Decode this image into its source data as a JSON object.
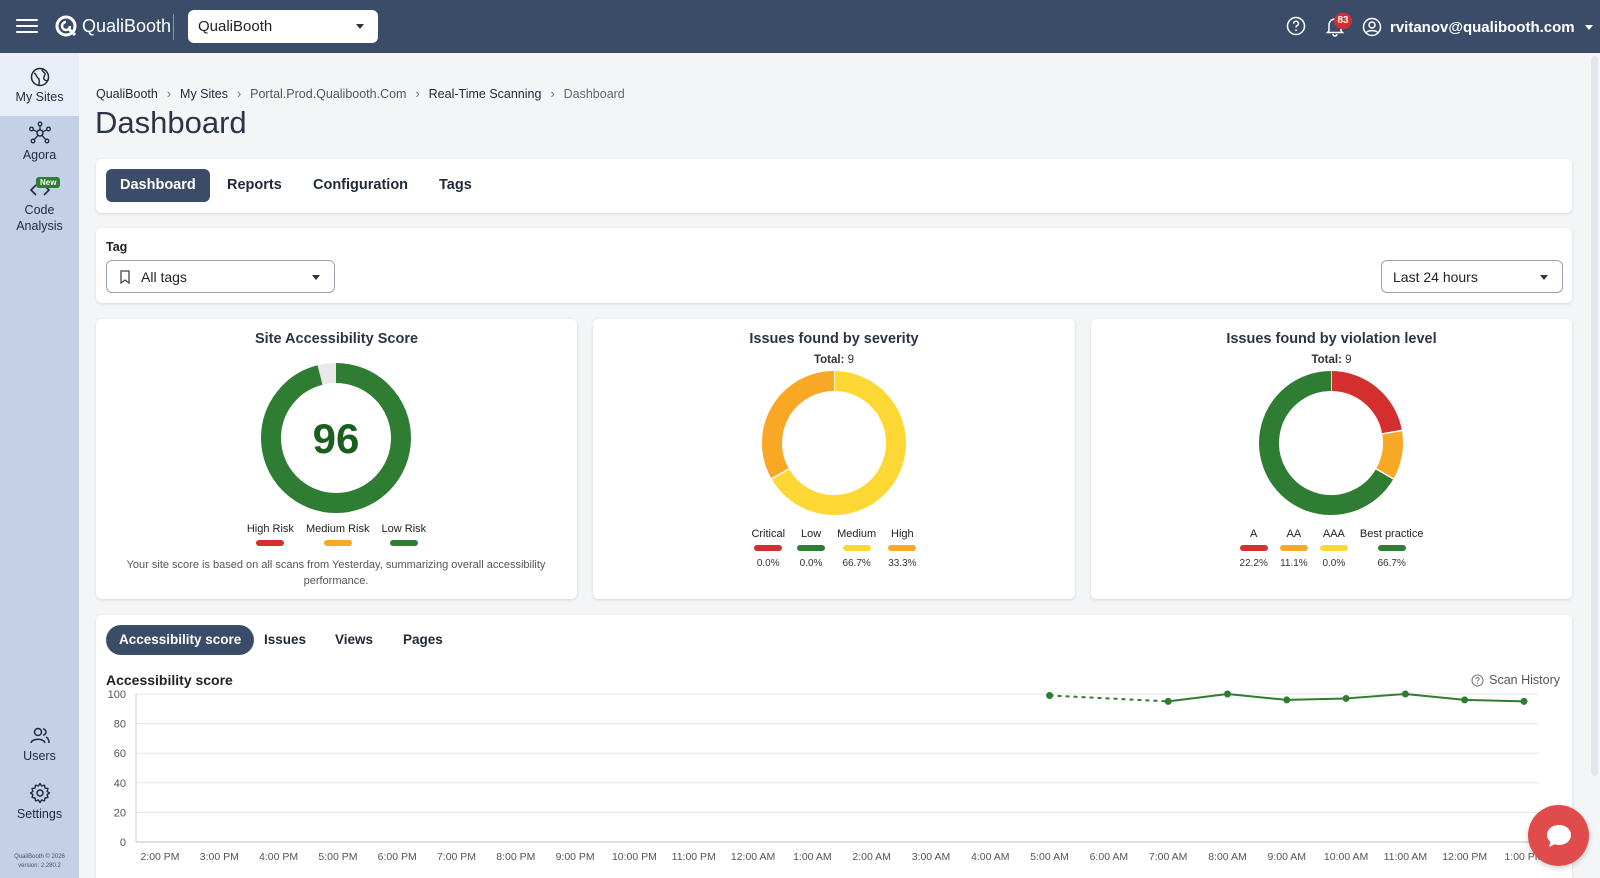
{
  "app": {
    "brand": "QualiBooth",
    "site_selector": "QualiBooth",
    "notifications_count": "83",
    "user_email": "rvitanov@qualibooth.com"
  },
  "sidebar": {
    "items": [
      {
        "label": "My Sites",
        "icon": "globe-icon"
      },
      {
        "label": "Agora",
        "icon": "network-icon"
      },
      {
        "label": "Code Analysis",
        "icon": "code-icon",
        "badge": "New"
      },
      {
        "label": "Users",
        "icon": "users-icon"
      },
      {
        "label": "Settings",
        "icon": "gear-icon"
      }
    ],
    "footer": [
      "QualiBooth © 2026",
      "version: 2.280.2"
    ]
  },
  "breadcrumb": [
    "QualiBooth",
    "My Sites",
    "Portal.Prod.Qualibooth.Com",
    "Real-Time Scanning",
    "Dashboard"
  ],
  "page_title": "Dashboard",
  "tabs": [
    "Dashboard",
    "Reports",
    "Configuration",
    "Tags"
  ],
  "filters": {
    "tag_label": "Tag",
    "tag_value": "All tags",
    "range_value": "Last 24 hours"
  },
  "score_card": {
    "title": "Site Accessibility Score",
    "score": "96",
    "legend": [
      {
        "label": "High Risk",
        "color": "#d32f2f"
      },
      {
        "label": "Medium Risk",
        "color": "#f9a825"
      },
      {
        "label": "Low Risk",
        "color": "#2e7d32"
      }
    ],
    "note": "Your site score is based on all scans from Yesterday, summarizing overall accessibility performance."
  },
  "severity_card": {
    "title": "Issues found by severity",
    "total_label": "Total:",
    "total": "9",
    "legend": [
      {
        "label": "Critical",
        "pct": "0.0%",
        "color": "#d32f2f"
      },
      {
        "label": "Low",
        "pct": "0.0%",
        "color": "#2e7d32"
      },
      {
        "label": "Medium",
        "pct": "66.7%",
        "color": "#fdd835"
      },
      {
        "label": "High",
        "pct": "33.3%",
        "color": "#f9a825"
      }
    ]
  },
  "violation_card": {
    "title": "Issues found by violation level",
    "total_label": "Total:",
    "total": "9",
    "legend": [
      {
        "label": "A",
        "pct": "22.2%",
        "color": "#d32f2f"
      },
      {
        "label": "AA",
        "pct": "11.1%",
        "color": "#f9a825"
      },
      {
        "label": "AAA",
        "pct": "0.0%",
        "color": "#fdd835"
      },
      {
        "label": "Best practice",
        "pct": "66.7%",
        "color": "#2e7d32"
      }
    ]
  },
  "chart_section": {
    "subtabs": [
      "Accessibility score",
      "Issues",
      "Views",
      "Pages"
    ],
    "title": "Accessibility score",
    "scan_history": "Scan History"
  },
  "chart_data": [
    {
      "type": "pie",
      "title": "Site Accessibility Score",
      "values": [
        96,
        4
      ],
      "labels": [
        "score",
        "remaining"
      ],
      "center_label": "96"
    },
    {
      "type": "pie",
      "title": "Issues found by severity",
      "labels": [
        "Critical",
        "Low",
        "Medium",
        "High"
      ],
      "values": [
        0.0,
        0.0,
        66.7,
        33.3
      ],
      "colors": [
        "#d32f2f",
        "#2e7d32",
        "#fdd835",
        "#f9a825"
      ]
    },
    {
      "type": "pie",
      "title": "Issues found by violation level",
      "labels": [
        "A",
        "AA",
        "AAA",
        "Best practice"
      ],
      "values": [
        22.2,
        11.1,
        0.0,
        66.7
      ],
      "colors": [
        "#d32f2f",
        "#f9a825",
        "#fdd835",
        "#2e7d32"
      ]
    },
    {
      "type": "line",
      "title": "Accessibility score",
      "ylim": [
        0,
        100
      ],
      "yticks": [
        0,
        20,
        40,
        60,
        80,
        100
      ],
      "x": [
        "2:00 PM",
        "3:00 PM",
        "4:00 PM",
        "5:00 PM",
        "6:00 PM",
        "7:00 PM",
        "8:00 PM",
        "9:00 PM",
        "10:00 PM",
        "11:00 PM",
        "12:00 AM",
        "1:00 AM",
        "2:00 AM",
        "3:00 AM",
        "4:00 AM",
        "5:00 AM",
        "6:00 AM",
        "7:00 AM",
        "8:00 AM",
        "9:00 AM",
        "10:00 AM",
        "11:00 AM",
        "12:00 PM",
        "1:00 PM"
      ],
      "series": [
        {
          "values": [
            null,
            null,
            null,
            null,
            null,
            null,
            null,
            null,
            null,
            null,
            null,
            null,
            null,
            null,
            null,
            99,
            null,
            95,
            100,
            96,
            97,
            100,
            96,
            95
          ],
          "color": "#2e7d32"
        }
      ],
      "grid": true
    }
  ]
}
